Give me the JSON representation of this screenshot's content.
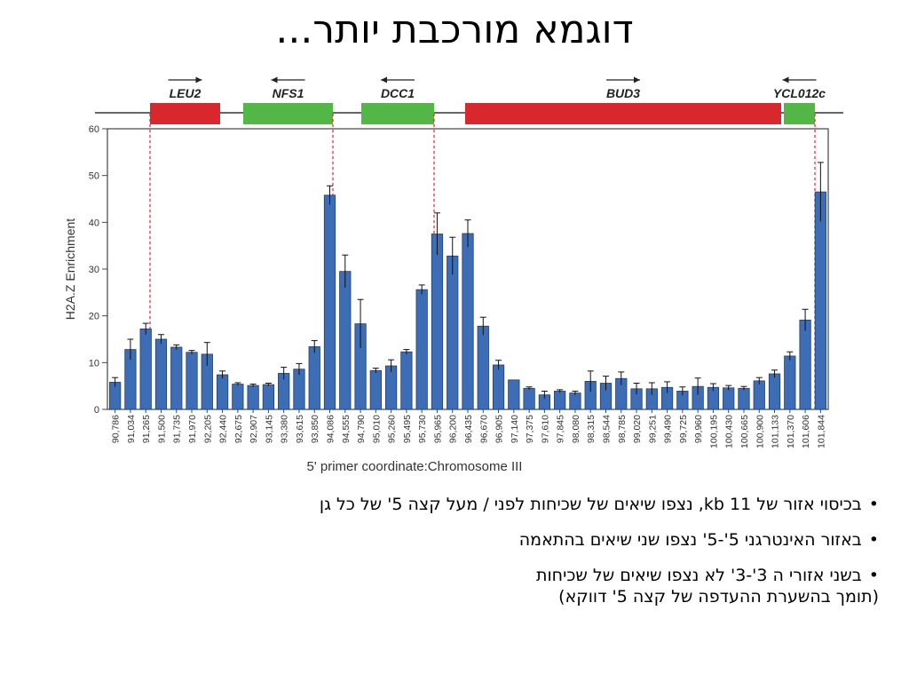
{
  "slide": {
    "title": "דוגמא מורכבת יותר...",
    "bullets": [
      {
        "marker": "•",
        "lines": [
          "בכיסוי אזור של 11 kb, נצפו שיאים של שכיחות לפני / מעל קצה 5' של כל גן"
        ]
      },
      {
        "marker": "•",
        "lines": [
          "באזור האינטרגני 5'-5' נצפו שני שיאים בהתאמה"
        ]
      },
      {
        "marker": "•",
        "lines": [
          "בשני אזורי ה 3'-3'  לא נצפו שיאים של שכיחות",
          "(תומך בהשערת ההעדפה של קצה 5' דווקא)"
        ]
      }
    ]
  },
  "colors": {
    "bar": "#3d6db5",
    "bar_edge": "#1e3f78",
    "gene_red": "#d9272e",
    "gene_green": "#52b747",
    "dashed_line": "#d9272e"
  },
  "chart_data": {
    "type": "bar",
    "ylabel": "H2A.Z Enrichment",
    "xlabel": "5' primer coordinate:Chromosome III",
    "ylim": [
      0,
      60
    ],
    "yticks": [
      0,
      10,
      20,
      30,
      40,
      50,
      60
    ],
    "grid": false,
    "categories": [
      "90,786",
      "91,034",
      "91,265",
      "91,500",
      "91,735",
      "91,970",
      "92,205",
      "92,440",
      "92,675",
      "92,907",
      "93,145",
      "93,380",
      "93,615",
      "93,850",
      "94,086",
      "94,555",
      "94,790",
      "95,010",
      "95,260",
      "95,495",
      "95,730",
      "95,965",
      "96,200",
      "96,435",
      "96,670",
      "96,905",
      "97,140",
      "97,375",
      "97,610",
      "97,845",
      "98,080",
      "98,315",
      "98,544",
      "98,785",
      "99,020",
      "99,251",
      "99,490",
      "99,725",
      "99,960",
      "100,195",
      "100,430",
      "100,665",
      "100,900",
      "101,133",
      "101,370",
      "101,606",
      "101,844"
    ],
    "values": [
      5.8,
      12.8,
      17.2,
      15.0,
      13.3,
      12.2,
      11.8,
      7.4,
      5.4,
      5.1,
      5.3,
      7.7,
      8.6,
      13.4,
      45.8,
      29.5,
      18.3,
      8.3,
      9.3,
      12.3,
      25.6,
      37.5,
      32.8,
      37.6,
      17.8,
      9.5,
      6.3,
      4.5,
      3.1,
      3.9,
      3.5,
      6.0,
      5.6,
      6.6,
      4.4,
      4.4,
      4.7,
      3.9,
      4.9,
      4.7,
      4.6,
      4.5,
      6.1,
      7.6,
      11.4,
      19.1,
      46.5
    ],
    "errors": [
      1.0,
      2.2,
      1.2,
      1.0,
      0.5,
      0.4,
      2.5,
      0.8,
      0.3,
      0.3,
      0.3,
      1.3,
      1.2,
      1.3,
      2.0,
      3.5,
      5.2,
      0.5,
      1.3,
      0.5,
      1.0,
      4.5,
      4.0,
      2.9,
      1.9,
      1.0,
      0.0,
      0.3,
      0.8,
      0.3,
      0.4,
      2.2,
      1.5,
      1.4,
      1.2,
      1.3,
      1.2,
      0.9,
      1.8,
      0.8,
      0.5,
      0.4,
      0.7,
      0.8,
      0.9,
      2.3,
      6.3
    ],
    "genes": [
      {
        "name": "LEU2",
        "color": "red",
        "direction": "right"
      },
      {
        "name": "NFS1",
        "color": "green",
        "direction": "left"
      },
      {
        "name": "DCC1",
        "color": "green",
        "direction": "left"
      },
      {
        "name": "BUD3",
        "color": "red",
        "direction": "right"
      },
      {
        "name": "YCL012c",
        "color": "green",
        "direction": "left"
      }
    ]
  }
}
